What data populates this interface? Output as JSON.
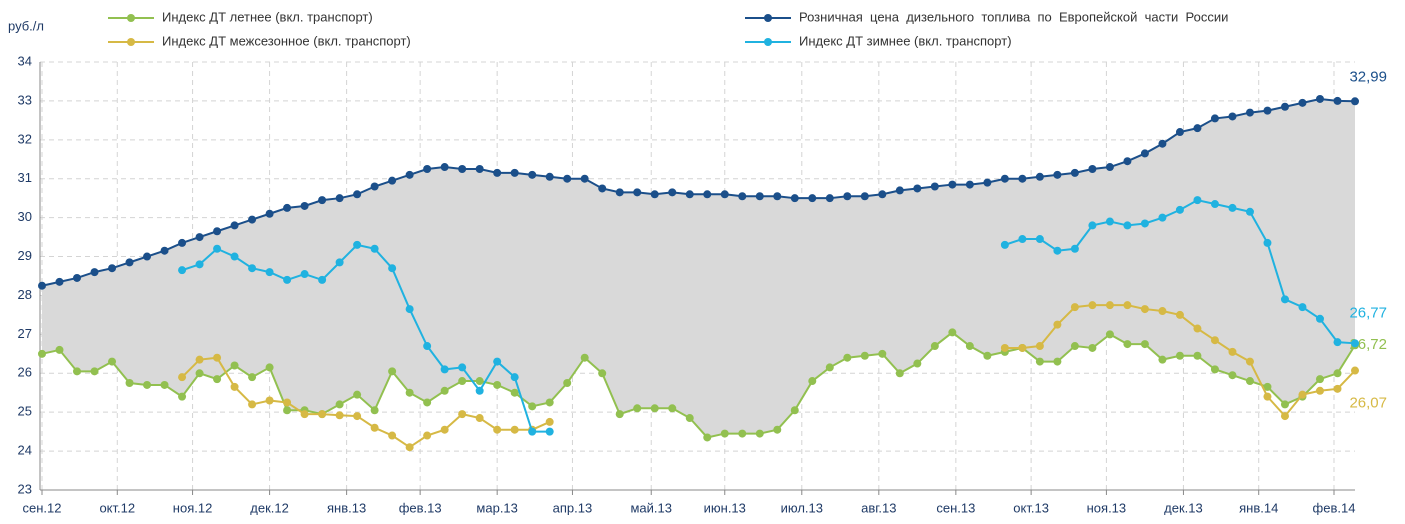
{
  "chart_data": {
    "type": "line",
    "y_label": "руб./л",
    "legend": "top",
    "grid": true,
    "fill_between": [
      2,
      0
    ],
    "fill_color": "#d9d9d9",
    "xlim": [
      0,
      75
    ],
    "ylim": [
      23,
      34
    ],
    "yticks": [
      23,
      24,
      25,
      26,
      27,
      28,
      29,
      30,
      31,
      32,
      33,
      34
    ],
    "xticks": [
      {
        "value": 0,
        "label": "сен.12"
      },
      {
        "value": 4.3,
        "label": "окт.12"
      },
      {
        "value": 8.6,
        "label": "ноя.12"
      },
      {
        "value": 13,
        "label": "дек.12"
      },
      {
        "value": 17.4,
        "label": "янв.13"
      },
      {
        "value": 21.6,
        "label": "фев.13"
      },
      {
        "value": 26,
        "label": "мар.13"
      },
      {
        "value": 30.3,
        "label": "апр.13"
      },
      {
        "value": 34.8,
        "label": "май.13"
      },
      {
        "value": 39,
        "label": "июн.13"
      },
      {
        "value": 43.4,
        "label": "июл.13"
      },
      {
        "value": 47.8,
        "label": "авг.13"
      },
      {
        "value": 52.2,
        "label": "сен.13"
      },
      {
        "value": 56.5,
        "label": "окт.13"
      },
      {
        "value": 60.8,
        "label": "ноя.13"
      },
      {
        "value": 65.2,
        "label": "дек.13"
      },
      {
        "value": 69.5,
        "label": "янв.14"
      },
      {
        "value": 73.8,
        "label": "фев.14"
      }
    ],
    "x": [
      0,
      1,
      2,
      3,
      4,
      5,
      6,
      7,
      8,
      9,
      10,
      11,
      12,
      13,
      14,
      15,
      16,
      17,
      18,
      19,
      20,
      21,
      22,
      23,
      24,
      25,
      26,
      27,
      28,
      29,
      30,
      31,
      32,
      33,
      34,
      35,
      36,
      37,
      38,
      39,
      40,
      41,
      42,
      43,
      44,
      45,
      46,
      47,
      48,
      49,
      50,
      51,
      52,
      53,
      54,
      55,
      56,
      57,
      58,
      59,
      60,
      61,
      62,
      63,
      64,
      65,
      66,
      67,
      68,
      69,
      70,
      71,
      72,
      73,
      74,
      75
    ],
    "series": [
      {
        "name": "Индекс ДТ летнее (вкл. транспорт)",
        "color": "#92c050",
        "values": [
          26.5,
          26.6,
          26.05,
          26.05,
          26.3,
          25.75,
          25.7,
          25.7,
          25.4,
          26.0,
          25.85,
          26.2,
          25.9,
          26.15,
          25.05,
          25.05,
          24.95,
          25.2,
          25.45,
          25.05,
          26.05,
          25.5,
          25.25,
          25.55,
          25.8,
          25.8,
          25.7,
          25.5,
          25.15,
          25.25,
          25.75,
          26.4,
          26.0,
          24.95,
          25.1,
          25.1,
          25.1,
          24.85,
          24.35,
          24.45,
          24.45,
          24.45,
          24.55,
          25.05,
          25.8,
          26.15,
          26.4,
          26.45,
          26.5,
          26.0,
          26.25,
          26.7,
          27.05,
          26.7,
          26.45,
          26.55,
          26.65,
          26.3,
          26.3,
          26.7,
          26.65,
          27.0,
          26.75,
          26.75,
          26.35,
          26.45,
          26.45,
          26.1,
          25.95,
          25.8,
          25.65,
          25.2,
          25.4,
          25.85,
          26.0,
          26.72
        ],
        "value_labels": [
          null,
          null,
          null,
          null,
          null,
          null,
          null,
          null,
          null,
          null,
          null,
          null,
          null,
          null,
          null,
          null,
          null,
          null,
          null,
          null,
          null,
          null,
          null,
          null,
          null,
          null,
          null,
          null,
          null,
          null,
          null,
          null,
          null,
          null,
          null,
          null,
          null,
          null,
          null,
          null,
          null,
          null,
          null,
          null,
          null,
          null,
          null,
          null,
          null,
          null,
          null,
          null,
          null,
          null,
          null,
          null,
          null,
          null,
          null,
          null,
          null,
          null,
          null,
          null,
          null,
          null,
          null,
          null,
          null,
          null,
          null,
          null,
          null,
          null,
          null,
          "26,72"
        ]
      },
      {
        "name": "Индекс ДТ межсезонное (вкл. транспорт)",
        "color": "#d6b945",
        "values": [
          null,
          null,
          null,
          null,
          null,
          null,
          null,
          null,
          25.9,
          26.35,
          26.4,
          25.65,
          25.2,
          25.3,
          25.25,
          24.95,
          24.95,
          24.92,
          24.9,
          24.6,
          24.4,
          24.1,
          24.4,
          24.55,
          24.95,
          24.85,
          24.55,
          24.55,
          24.55,
          24.75,
          null,
          null,
          null,
          null,
          null,
          null,
          null,
          null,
          null,
          null,
          null,
          null,
          null,
          null,
          null,
          null,
          null,
          null,
          null,
          null,
          null,
          null,
          null,
          null,
          null,
          26.65,
          26.65,
          26.7,
          27.25,
          27.7,
          27.75,
          27.75,
          27.75,
          27.65,
          27.6,
          27.5,
          27.15,
          26.85,
          26.55,
          26.3,
          25.4,
          24.9,
          25.45,
          25.55,
          25.6,
          26.07
        ],
        "value_labels": [
          null,
          null,
          null,
          null,
          null,
          null,
          null,
          null,
          null,
          null,
          null,
          null,
          null,
          null,
          null,
          null,
          null,
          null,
          null,
          null,
          null,
          null,
          null,
          null,
          null,
          null,
          null,
          null,
          null,
          null,
          null,
          null,
          null,
          null,
          null,
          null,
          null,
          null,
          null,
          null,
          null,
          null,
          null,
          null,
          null,
          null,
          null,
          null,
          null,
          null,
          null,
          null,
          null,
          null,
          null,
          null,
          null,
          null,
          null,
          null,
          null,
          null,
          null,
          null,
          null,
          null,
          null,
          null,
          null,
          null,
          null,
          null,
          null,
          null,
          null,
          "26,07"
        ]
      },
      {
        "name": "Розничная  цена  дизельного  топлива  по  Европейской  части  России",
        "color": "#1b4f8a",
        "values": [
          28.25,
          28.35,
          28.45,
          28.6,
          28.7,
          28.85,
          29.0,
          29.15,
          29.35,
          29.5,
          29.65,
          29.8,
          29.95,
          30.1,
          30.25,
          30.3,
          30.45,
          30.5,
          30.6,
          30.8,
          30.95,
          31.1,
          31.25,
          31.3,
          31.25,
          31.25,
          31.15,
          31.15,
          31.1,
          31.05,
          31.0,
          31.0,
          30.75,
          30.65,
          30.65,
          30.6,
          30.65,
          30.6,
          30.6,
          30.6,
          30.55,
          30.55,
          30.55,
          30.5,
          30.5,
          30.5,
          30.55,
          30.55,
          30.6,
          30.7,
          30.75,
          30.8,
          30.85,
          30.85,
          30.9,
          31.0,
          31.0,
          31.05,
          31.1,
          31.15,
          31.25,
          31.3,
          31.45,
          31.65,
          31.9,
          32.2,
          32.3,
          32.55,
          32.6,
          32.7,
          32.75,
          32.85,
          32.95,
          33.05,
          33.0,
          32.99
        ],
        "value_labels": [
          null,
          null,
          null,
          null,
          null,
          null,
          null,
          null,
          null,
          null,
          null,
          null,
          null,
          null,
          null,
          null,
          null,
          null,
          null,
          null,
          null,
          null,
          null,
          null,
          null,
          null,
          null,
          null,
          null,
          null,
          null,
          null,
          null,
          null,
          null,
          null,
          null,
          null,
          null,
          null,
          null,
          null,
          null,
          null,
          null,
          null,
          null,
          null,
          null,
          null,
          null,
          null,
          null,
          null,
          null,
          null,
          null,
          null,
          null,
          null,
          null,
          null,
          null,
          null,
          null,
          null,
          null,
          null,
          null,
          null,
          null,
          null,
          null,
          null,
          null,
          "32,99"
        ]
      },
      {
        "name": "Индекс ДТ зимнее (вкл. транспорт)",
        "color": "#20b2e0",
        "values": [
          null,
          null,
          null,
          null,
          null,
          null,
          null,
          null,
          28.65,
          28.8,
          29.2,
          29.0,
          28.7,
          28.6,
          28.4,
          28.55,
          28.4,
          28.85,
          29.3,
          29.2,
          28.7,
          27.65,
          26.7,
          26.1,
          26.15,
          25.55,
          26.3,
          25.9,
          24.5,
          24.5,
          null,
          null,
          null,
          null,
          null,
          null,
          null,
          null,
          null,
          null,
          null,
          null,
          null,
          null,
          null,
          null,
          null,
          null,
          null,
          null,
          null,
          null,
          null,
          null,
          null,
          29.3,
          29.45,
          29.45,
          29.15,
          29.2,
          29.8,
          29.9,
          29.8,
          29.85,
          30.0,
          30.2,
          30.45,
          30.35,
          30.25,
          30.15,
          29.35,
          27.9,
          27.7,
          27.4,
          26.8,
          26.77
        ],
        "value_labels": [
          null,
          null,
          null,
          null,
          null,
          null,
          null,
          null,
          null,
          null,
          null,
          null,
          null,
          null,
          null,
          null,
          null,
          null,
          null,
          null,
          null,
          null,
          null,
          null,
          null,
          null,
          null,
          null,
          null,
          null,
          null,
          null,
          null,
          null,
          null,
          null,
          null,
          null,
          null,
          null,
          null,
          null,
          null,
          null,
          null,
          null,
          null,
          null,
          null,
          null,
          null,
          null,
          null,
          null,
          null,
          null,
          null,
          null,
          null,
          null,
          null,
          null,
          null,
          null,
          null,
          null,
          null,
          null,
          null,
          null,
          null,
          null,
          null,
          null,
          null,
          "26,77"
        ]
      }
    ]
  }
}
